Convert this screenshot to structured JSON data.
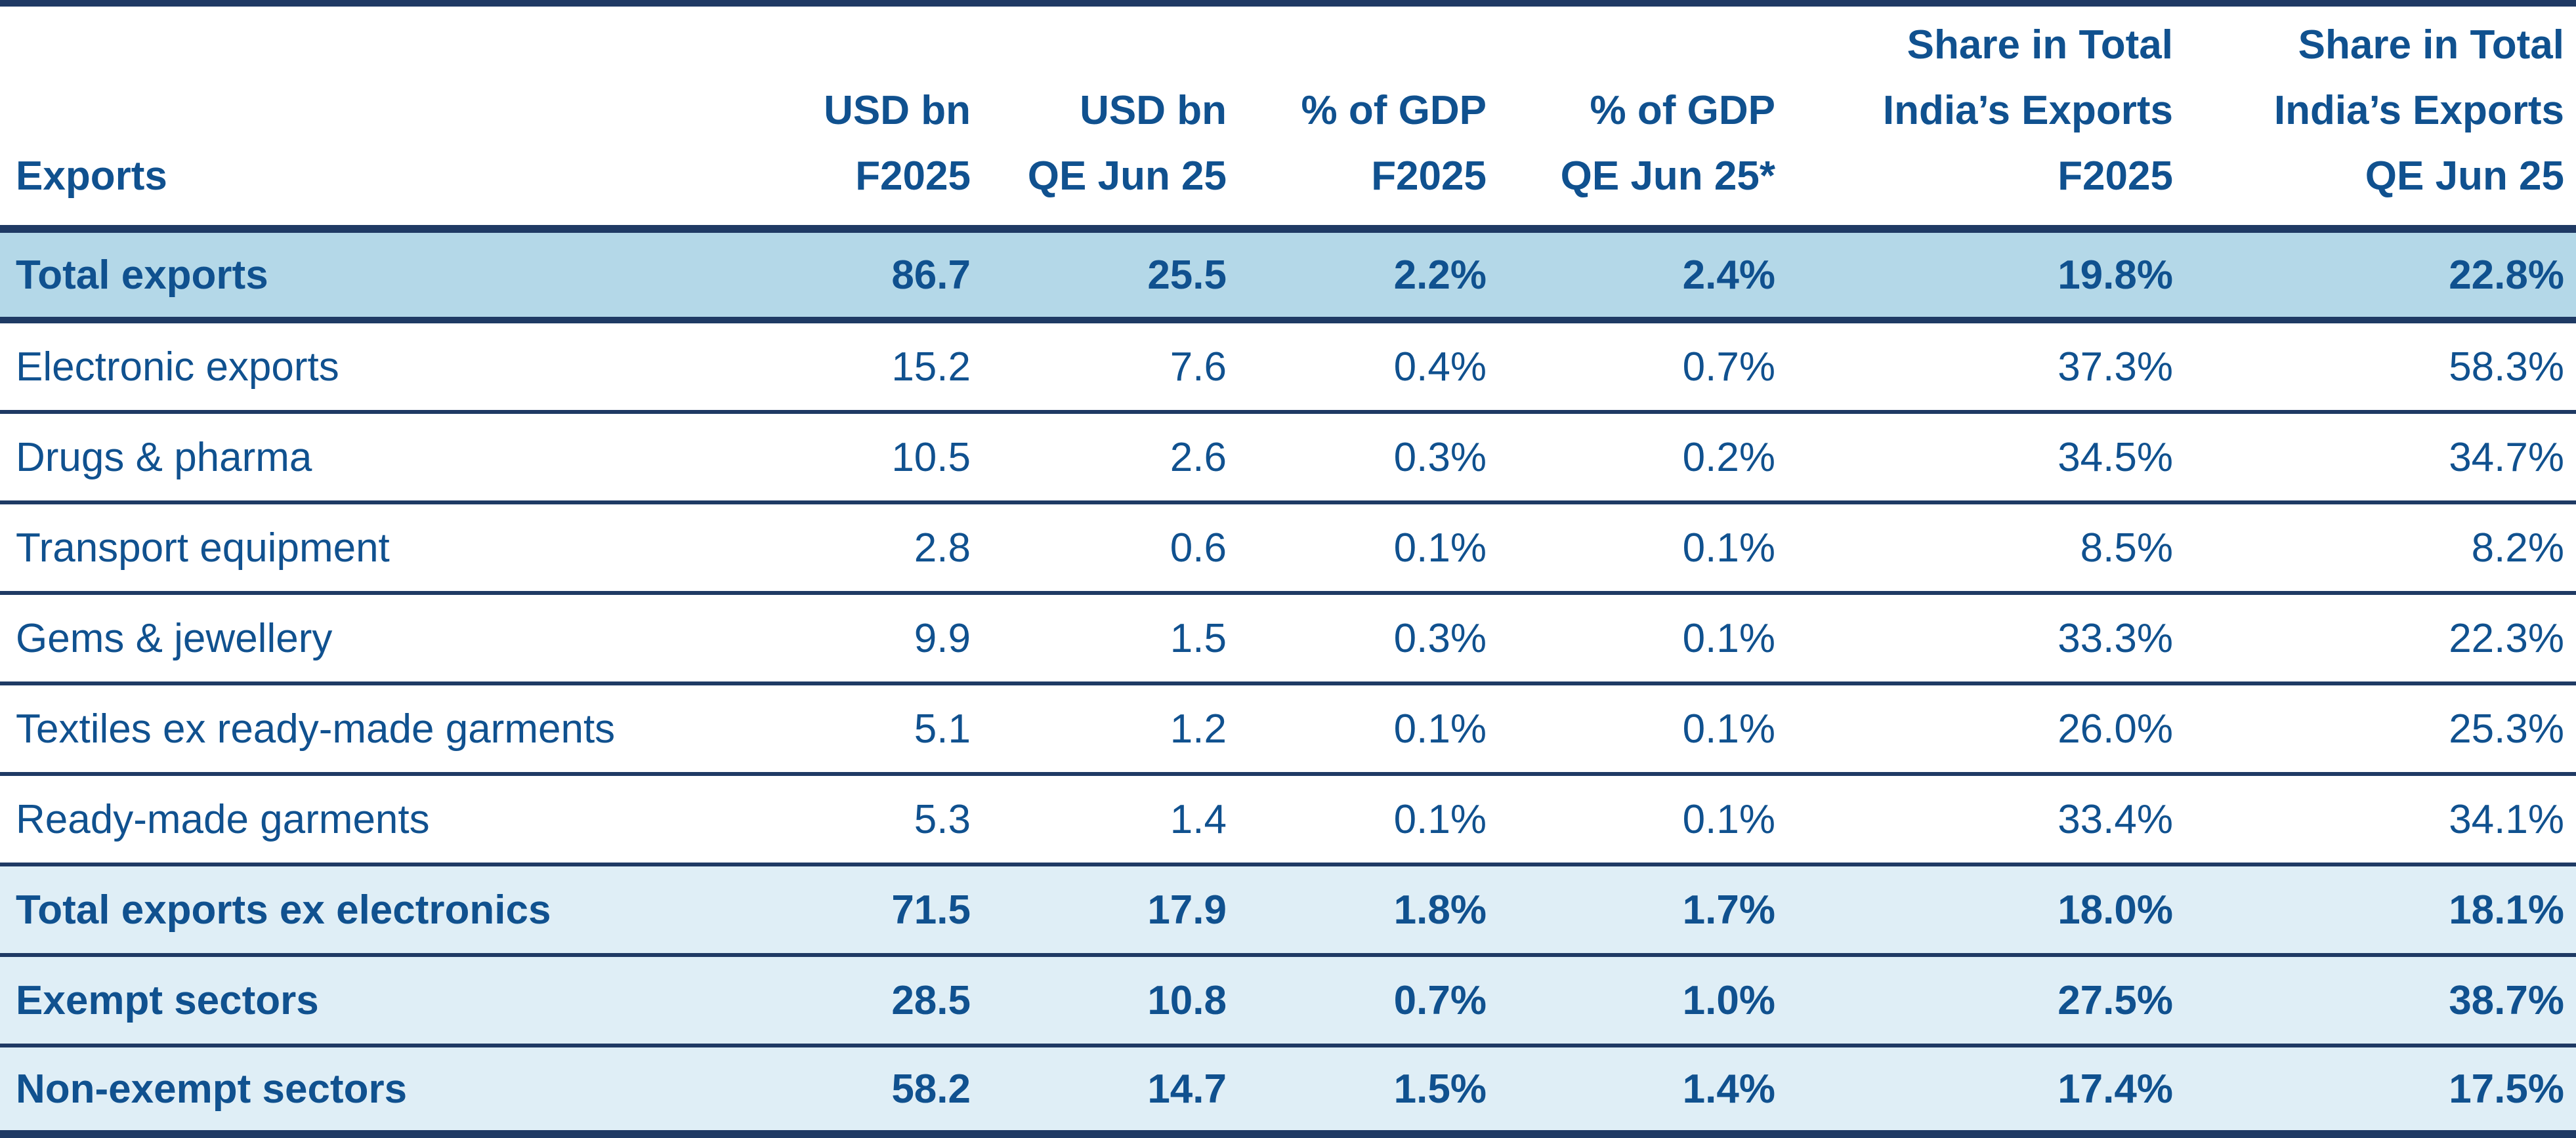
{
  "chart_data": {
    "type": "table",
    "title": "",
    "column_headers": [
      "Exports",
      "USD bn F2025",
      "USD bn QE Jun 25",
      "% of GDP F2025",
      "% of GDP QE Jun 25*",
      "Share in Total India’s Exports F2025",
      "Share in Total India’s Exports QE Jun 25"
    ],
    "rows": [
      {
        "label": "Total exports",
        "values": [
          "86.7",
          "25.5",
          "2.2%",
          "2.4%",
          "19.8%",
          "22.8%"
        ],
        "emphasis": "strong"
      },
      {
        "label": "Electronic exports",
        "values": [
          "15.2",
          "7.6",
          "0.4%",
          "0.7%",
          "37.3%",
          "58.3%"
        ],
        "emphasis": "none"
      },
      {
        "label": "Drugs & pharma",
        "values": [
          "10.5",
          "2.6",
          "0.3%",
          "0.2%",
          "34.5%",
          "34.7%"
        ],
        "emphasis": "none"
      },
      {
        "label": "Transport equipment",
        "values": [
          "2.8",
          "0.6",
          "0.1%",
          "0.1%",
          "8.5%",
          "8.2%"
        ],
        "emphasis": "none"
      },
      {
        "label": "Gems & jewellery",
        "values": [
          "9.9",
          "1.5",
          "0.3%",
          "0.1%",
          "33.3%",
          "22.3%"
        ],
        "emphasis": "none"
      },
      {
        "label": "Textiles ex ready-made garments",
        "values": [
          "5.1",
          "1.2",
          "0.1%",
          "0.1%",
          "26.0%",
          "25.3%"
        ],
        "emphasis": "none"
      },
      {
        "label": "Ready-made garments",
        "values": [
          "5.3",
          "1.4",
          "0.1%",
          "0.1%",
          "33.4%",
          "34.1%"
        ],
        "emphasis": "none"
      },
      {
        "label": "Total exports ex electronics",
        "values": [
          "71.5",
          "17.9",
          "1.8%",
          "1.7%",
          "18.0%",
          "18.1%"
        ],
        "emphasis": "soft"
      },
      {
        "label": "Exempt sectors",
        "values": [
          "28.5",
          "10.8",
          "0.7%",
          "1.0%",
          "27.5%",
          "38.7%"
        ],
        "emphasis": "soft"
      },
      {
        "label": "Non-exempt sectors",
        "values": [
          "58.2",
          "14.7",
          "1.5%",
          "1.4%",
          "17.4%",
          "17.5%"
        ],
        "emphasis": "soft"
      }
    ]
  },
  "header_lines": [
    {
      "l1": "Exports"
    },
    {
      "l1": "USD bn",
      "l2": "F2025"
    },
    {
      "l1": "USD bn",
      "l2": "QE Jun 25"
    },
    {
      "l1": "% of GDP",
      "l2": "F2025"
    },
    {
      "l1": "% of GDP",
      "l2": "QE Jun 25*"
    },
    {
      "l1": "Share in Total",
      "l2": "India’s Exports",
      "l3": "F2025"
    },
    {
      "l1": "Share in Total",
      "l2": "India’s Exports",
      "l3": "QE Jun 25"
    }
  ],
  "colors": {
    "text_blue": "#10518f",
    "border_navy": "#1f3a64",
    "row_highlight_strong": "#b4d8e8",
    "row_highlight_soft": "#dfeef6",
    "row_plain": "#ffffff"
  }
}
